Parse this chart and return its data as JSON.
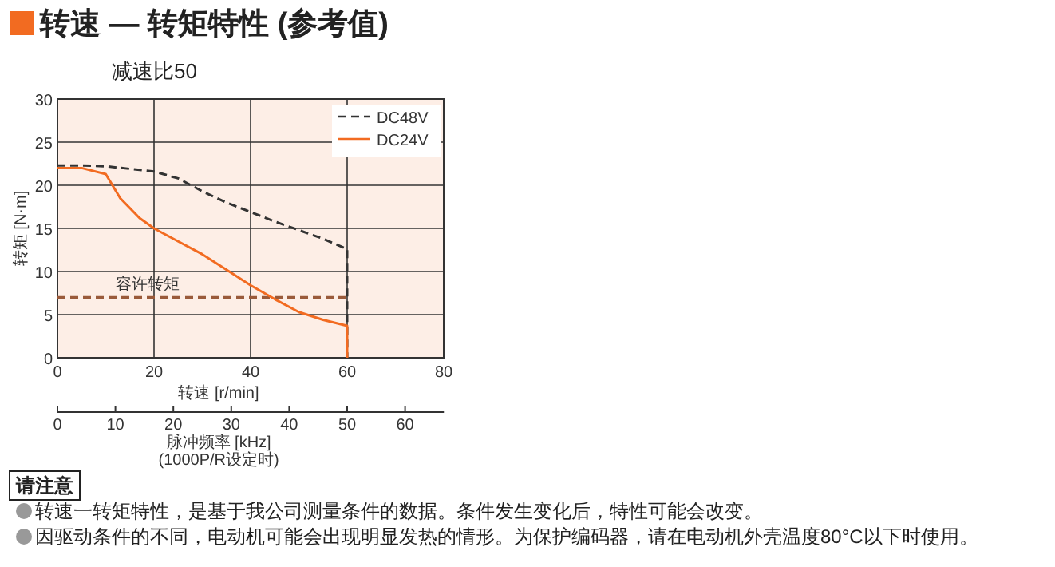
{
  "chart_data": {
    "type": "line",
    "title": "转速 — 转矩特性 (参考值)",
    "subtitle": "减速比50",
    "xlabel": "转速 [r/min]",
    "ylabel": "转矩 [N·m]",
    "x2label": "脉冲频率 [kHz]\n(1000P/R设定时)",
    "xlim": [
      0,
      80
    ],
    "xticks": [
      0,
      20,
      40,
      60,
      80
    ],
    "ylim": [
      0,
      30
    ],
    "yticks": [
      0,
      5,
      10,
      15,
      20,
      25,
      30
    ],
    "x2lim": [
      0,
      66.7
    ],
    "x2ticks": [
      0,
      10,
      20,
      30,
      40,
      50,
      60
    ],
    "grid": true,
    "legend": "top right",
    "series": [
      {
        "name": "DC48V",
        "color": "#333333",
        "line_style": "dashed",
        "x": [
          0,
          5,
          10,
          20,
          25,
          30,
          35,
          40,
          45,
          50,
          55,
          60,
          60
        ],
        "values": [
          22.3,
          22.3,
          22.2,
          21.6,
          20.8,
          19.3,
          18.0,
          16.9,
          15.8,
          14.8,
          13.8,
          12.6,
          0
        ]
      },
      {
        "name": "DC24V",
        "color": "#f26b21",
        "line_style": "solid",
        "x": [
          0,
          5,
          10,
          13,
          17,
          20,
          25,
          30,
          35,
          40,
          45,
          50,
          55,
          60,
          60
        ],
        "values": [
          22.0,
          22.0,
          21.3,
          18.5,
          16.2,
          15.0,
          13.5,
          12.0,
          10.2,
          8.4,
          6.8,
          5.3,
          4.4,
          3.7,
          0
        ]
      }
    ],
    "ref_lines": [
      {
        "axis": "y",
        "value": 7,
        "label": "容许转矩",
        "color": "#9a5a3a",
        "line_style": "dashed"
      }
    ],
    "annotations": [
      "请注意",
      "转速一转矩特性，是基于我公司测量条件的数据。条件发生变化后，特性可能会改变。",
      "因驱动条件的不同，电动机可能会出现明显发热的情形。为保护编码器，请在电动机外壳温度80°C以下时使用。"
    ]
  }
}
